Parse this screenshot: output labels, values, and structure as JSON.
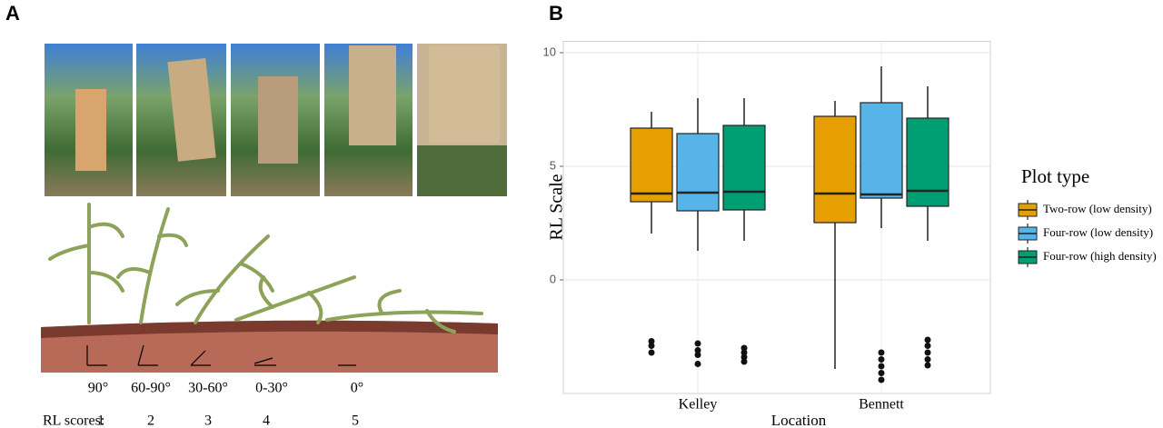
{
  "panel_a": {
    "label": "A",
    "angles": [
      "90°",
      "60-90°",
      "30-60°",
      "0-30°",
      "0°"
    ],
    "scores_label": "RL scores:",
    "scores": [
      1,
      2,
      3,
      4,
      5
    ]
  },
  "panel_b": {
    "label": "B"
  },
  "chart_data": {
    "type": "box",
    "x_label": "Location",
    "y_label": "RL Scale",
    "legend_title": "Plot type",
    "categories": [
      "Kelley",
      "Bennett"
    ],
    "ylim": [
      -5,
      10.5
    ],
    "yticks": [
      0,
      5,
      10
    ],
    "grid": true,
    "legend": "right",
    "series": [
      {
        "name": "Two-row (low density)",
        "color": "#E69F00",
        "values": [
          {
            "whislo": 2.04,
            "q1": 3.44,
            "med": 3.8,
            "q3": 6.68,
            "whishi": 7.4,
            "fliers": [
              -2.7,
              -2.9,
              -3.2
            ]
          },
          {
            "whislo": -3.92,
            "q1": 2.52,
            "med": 3.8,
            "q3": 7.2,
            "whishi": 7.88,
            "fliers": []
          }
        ]
      },
      {
        "name": "Four-row (low density)",
        "color": "#56B4E9",
        "values": [
          {
            "whislo": 1.28,
            "q1": 3.04,
            "med": 3.84,
            "q3": 6.44,
            "whishi": 8.0,
            "fliers": [
              -2.8,
              -3.1,
              -3.3,
              -3.7
            ]
          },
          {
            "whislo": 2.28,
            "q1": 3.6,
            "med": 3.76,
            "q3": 7.8,
            "whishi": 9.4,
            "fliers": [
              -3.2,
              -3.5,
              -3.8,
              -4.1,
              -4.4
            ]
          }
        ]
      },
      {
        "name": "Four-row (high density)",
        "color": "#009E73",
        "values": [
          {
            "whislo": 1.72,
            "q1": 3.08,
            "med": 3.88,
            "q3": 6.8,
            "whishi": 8.0,
            "fliers": [
              -3.0,
              -3.2,
              -3.4,
              -3.6
            ]
          },
          {
            "whislo": 1.72,
            "q1": 3.24,
            "med": 3.92,
            "q3": 7.12,
            "whishi": 8.52,
            "fliers": [
              -2.64,
              -2.9,
              -3.2,
              -3.5,
              -3.76
            ]
          }
        ]
      }
    ]
  }
}
